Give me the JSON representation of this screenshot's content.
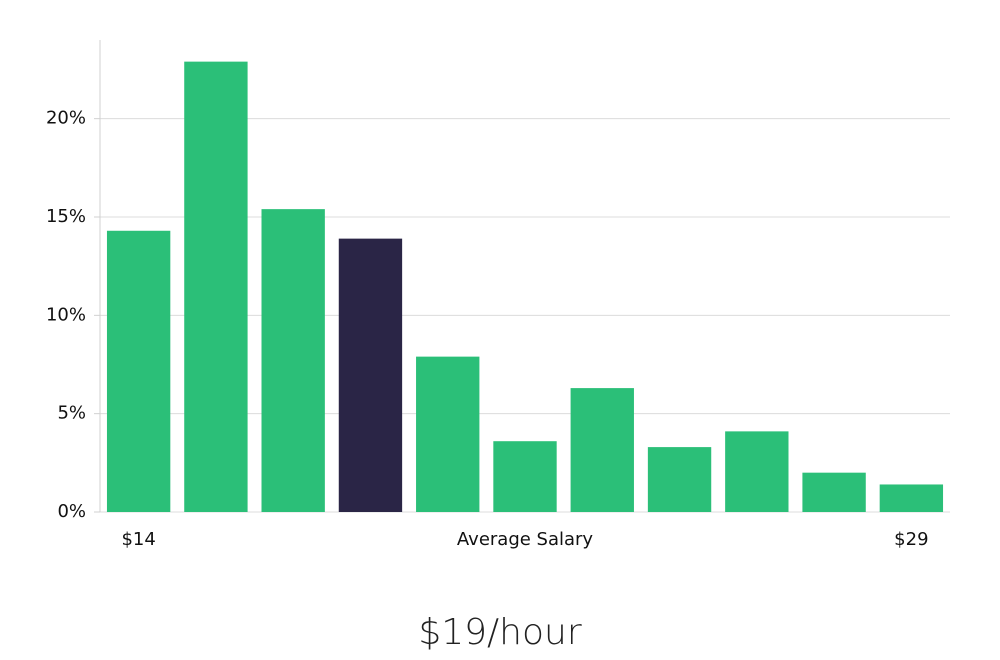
{
  "chart_data": {
    "type": "bar",
    "subtitle": "$19/hour",
    "xlabel": "Average Salary",
    "categories": [
      "$14",
      null,
      null,
      null,
      null,
      null,
      null,
      null,
      null,
      null,
      "$29"
    ],
    "values": [
      14.3,
      22.9,
      15.4,
      13.9,
      7.9,
      3.6,
      6.3,
      3.3,
      4.1,
      2.0,
      1.4
    ],
    "colors": [
      "#2bbf78",
      "#2bbf78",
      "#2bbf78",
      "#2a2546",
      "#2bbf78",
      "#2bbf78",
      "#2bbf78",
      "#2bbf78",
      "#2bbf78",
      "#2bbf78",
      "#2bbf78"
    ],
    "ylim": [
      0,
      24
    ],
    "yticks": [
      {
        "value": 0,
        "label": "0%"
      },
      {
        "value": 5,
        "label": "5%"
      },
      {
        "value": 10,
        "label": "10%"
      },
      {
        "value": 15,
        "label": "15%"
      },
      {
        "value": 20,
        "label": "20%"
      }
    ],
    "grid": true
  }
}
